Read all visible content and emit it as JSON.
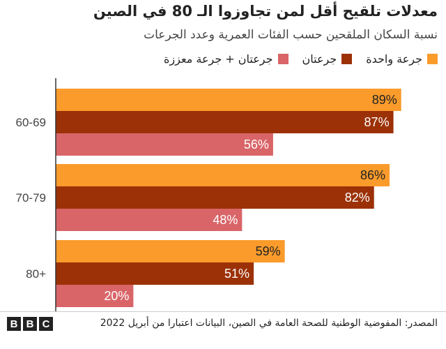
{
  "chart_data": {
    "type": "bar",
    "orientation": "horizontal",
    "title": "معدلات تلقيح أقل لمن تجاوزوا الـ 80 في الصين",
    "subtitle": "نسبة السكان الملقحين حسب الفئات العمرية وعدد الجرعات",
    "categories": [
      "60-69",
      "70-79",
      "80+"
    ],
    "series": [
      {
        "name": "جرعة واحدة",
        "color": "#fa9b2b",
        "values": [
          89,
          86,
          59
        ],
        "labels": [
          "89%",
          "86%",
          "59%"
        ]
      },
      {
        "name": "جرعتان",
        "color": "#9c3108",
        "values": [
          87,
          82,
          51
        ],
        "labels": [
          "87%",
          "82%",
          "51%"
        ]
      },
      {
        "name": "جرعتان + جرعة معززة",
        "color": "#d96568",
        "values": [
          56,
          48,
          20
        ],
        "labels": [
          "56%",
          "48%",
          "20%"
        ]
      }
    ],
    "xlim": [
      0,
      100
    ],
    "grid": false,
    "legend": "top-right"
  },
  "footer": {
    "source": "المصدر: المفوضية الوطنية للصحة العامة في الصين، البيانات اعتبارا من أبريل 2022",
    "logo": [
      "B",
      "B",
      "C"
    ]
  }
}
